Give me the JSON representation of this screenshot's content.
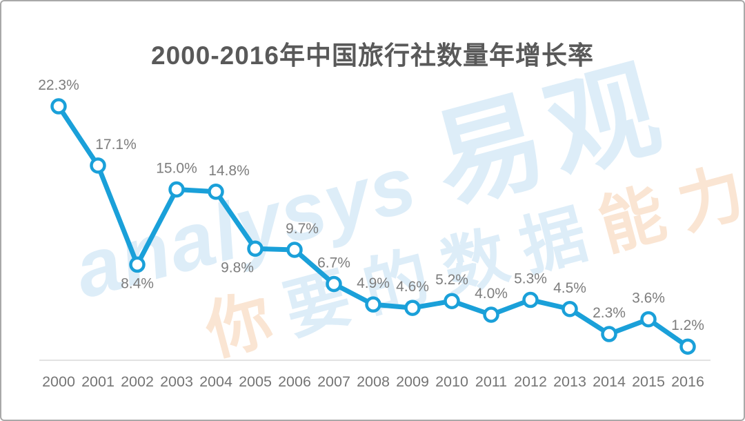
{
  "frame": {
    "background": "#ffffff",
    "border_color": "#a8a8a8"
  },
  "chart_data": {
    "type": "line",
    "title": "2000-2016年中国旅行社数量年增长率",
    "categories": [
      "2000",
      "2001",
      "2002",
      "2003",
      "2004",
      "2005",
      "2006",
      "2007",
      "2008",
      "2009",
      "2010",
      "2011",
      "2012",
      "2013",
      "2014",
      "2015",
      "2016"
    ],
    "values": [
      22.3,
      17.1,
      8.4,
      15.0,
      14.8,
      9.8,
      9.7,
      6.7,
      4.9,
      4.6,
      5.2,
      4.0,
      5.3,
      4.5,
      2.3,
      3.6,
      1.2
    ],
    "data_labels": [
      "22.3%",
      "17.1%",
      "8.4%",
      "15.0%",
      "14.8%",
      "9.8%",
      "9.7%",
      "6.7%",
      "4.9%",
      "4.6%",
      "5.2%",
      "4.0%",
      "5.3%",
      "4.5%",
      "2.3%",
      "3.6%",
      "1.2%"
    ],
    "label_position": [
      "above",
      "above",
      "below",
      "above",
      "above",
      "below",
      "above",
      "above",
      "above",
      "above",
      "above",
      "above",
      "above",
      "above",
      "above",
      "above",
      "above"
    ],
    "label_dx": [
      0,
      26,
      0,
      0,
      19,
      -26,
      11,
      0,
      0,
      0,
      0,
      0,
      0,
      0,
      0,
      0,
      0
    ],
    "xlabel": "",
    "ylabel": "",
    "ylim": [
      0,
      24
    ],
    "grid": false,
    "legend": false,
    "series_color": "#1aa0d9",
    "marker": "open-circle-white-fill",
    "axis_color": "#d9d9d9",
    "label_color": "#7d7d7d",
    "tick_color": "#757575",
    "title_color": "#595959"
  },
  "watermark": {
    "logo_latin": "analysys",
    "logo_cjk": "易观",
    "tagline": "你要的数据能力",
    "tagline_colors": [
      "tan",
      "blue",
      "blue",
      "blue",
      "blue",
      "tan",
      "tan"
    ],
    "blue": "#ddedf8",
    "tan": "#fae5d3"
  }
}
